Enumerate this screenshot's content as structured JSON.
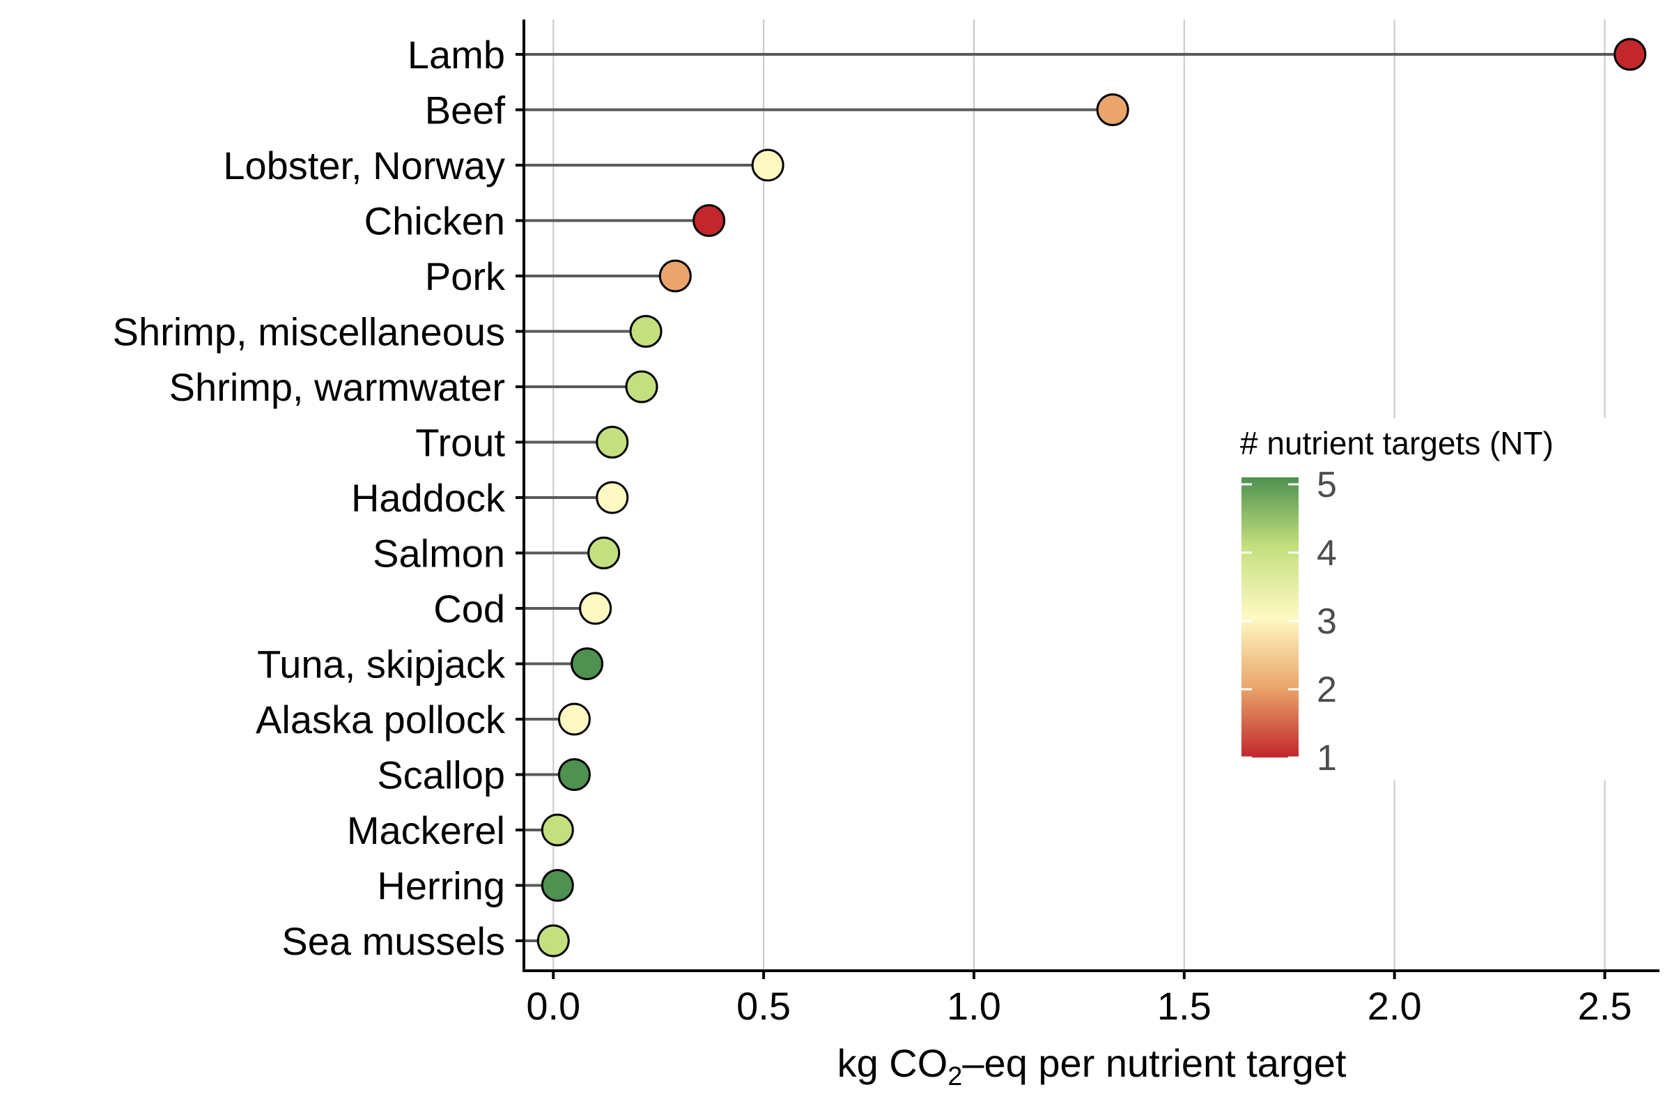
{
  "chart_data": {
    "type": "lollipop",
    "xlabel_parts": [
      "kg CO",
      "2",
      "–eq per nutrient target"
    ],
    "xlabel": "kg CO₂–eq per nutrient target",
    "xlim": [
      -0.07,
      2.63
    ],
    "xticks": [
      0.0,
      0.5,
      1.0,
      1.5,
      2.0,
      2.5
    ],
    "xtick_labels": [
      "0.0",
      "0.5",
      "1.0",
      "1.5",
      "2.0",
      "2.5"
    ],
    "categories": [
      "Lamb",
      "Beef",
      "Lobster, Norway",
      "Chicken",
      "Pork",
      "Shrimp, miscellaneous",
      "Shrimp, warmwater",
      "Trout",
      "Haddock",
      "Salmon",
      "Cod",
      "Tuna, skipjack",
      "Alaska pollock",
      "Scallop",
      "Mackerel",
      "Herring",
      "Sea mussels"
    ],
    "values": [
      2.56,
      1.33,
      0.51,
      0.37,
      0.29,
      0.22,
      0.21,
      0.14,
      0.14,
      0.12,
      0.1,
      0.08,
      0.05,
      0.05,
      0.01,
      0.01,
      0.0
    ],
    "nutrient_targets": [
      1,
      2,
      3,
      1,
      2,
      4,
      4,
      4,
      3,
      4,
      3,
      5,
      3,
      5,
      4,
      5,
      4
    ],
    "legend": {
      "title": "# nutrient targets (NT)",
      "ticks": [
        "5",
        "4",
        "3",
        "2",
        "1"
      ],
      "range": [
        1,
        5
      ],
      "colors": [
        "#c1272d",
        "#e9a56b",
        "#fef9c3",
        "#c4e07e",
        "#4f9150"
      ],
      "placement": "right-middle"
    },
    "grid": "vertical major"
  }
}
